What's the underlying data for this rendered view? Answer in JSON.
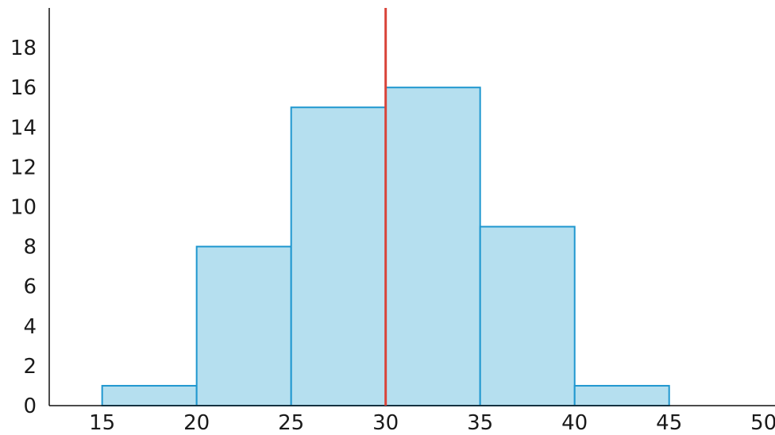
{
  "chart_data": {
    "type": "bar",
    "bins": [
      {
        "x0": 15,
        "x1": 20,
        "count": 1
      },
      {
        "x0": 20,
        "x1": 25,
        "count": 8
      },
      {
        "x0": 25,
        "x1": 30,
        "count": 15
      },
      {
        "x0": 30,
        "x1": 35,
        "count": 16
      },
      {
        "x0": 35,
        "x1": 40,
        "count": 9
      },
      {
        "x0": 40,
        "x1": 45,
        "count": 1
      }
    ],
    "x_ticks": [
      "15",
      "20",
      "25",
      "30",
      "35",
      "40",
      "45",
      "50"
    ],
    "y_ticks": [
      "0",
      "2",
      "4",
      "6",
      "8",
      "10",
      "12",
      "14",
      "16",
      "18"
    ],
    "xlim": [
      12.2,
      50.6
    ],
    "ylim": [
      0,
      20
    ],
    "reference_line": {
      "x": 30,
      "color": "#d9443a"
    },
    "bar_fill": "#b5dfef",
    "bar_stroke": "#1f97cf",
    "title": "",
    "xlabel": "",
    "ylabel": "",
    "grid": false,
    "legend": "none"
  }
}
